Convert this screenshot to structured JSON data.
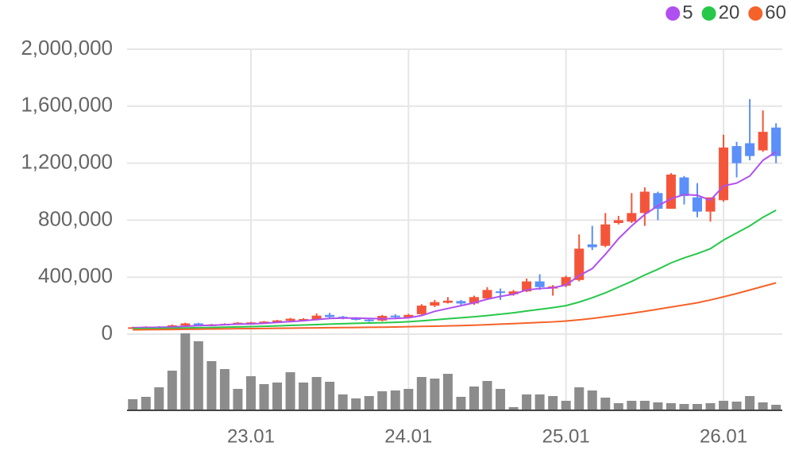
{
  "chart_data": {
    "type": "candlestick",
    "categories": [
      null,
      null,
      null,
      null,
      null,
      null,
      null,
      null,
      null,
      "23.01",
      null,
      null,
      null,
      null,
      null,
      null,
      null,
      null,
      null,
      null,
      null,
      "24.01",
      null,
      null,
      null,
      null,
      null,
      null,
      null,
      null,
      null,
      null,
      null,
      "25.01",
      null,
      null,
      null,
      null,
      null,
      null,
      null,
      null,
      null,
      null,
      null,
      "26.01",
      null,
      null,
      null,
      null
    ],
    "open": [
      40000,
      48000,
      52000,
      48000,
      60000,
      75000,
      60000,
      66000,
      70000,
      78000,
      80000,
      86000,
      94000,
      100000,
      100000,
      135000,
      122000,
      112000,
      102000,
      95000,
      130000,
      118000,
      140000,
      200000,
      220000,
      232000,
      215000,
      250000,
      300000,
      280000,
      300000,
      370000,
      320000,
      340000,
      380000,
      630000,
      620000,
      780000,
      790000,
      850000,
      990000,
      880000,
      1100000,
      960000,
      860000,
      940000,
      1320000,
      1340000,
      1290000,
      1450000
    ],
    "high": [
      52000,
      55000,
      56000,
      68000,
      80000,
      80000,
      72000,
      76000,
      84000,
      86000,
      92000,
      100000,
      114000,
      112000,
      145000,
      150000,
      128000,
      118000,
      108000,
      135000,
      140000,
      142000,
      210000,
      240000,
      260000,
      240000,
      270000,
      330000,
      320000,
      310000,
      390000,
      420000,
      345000,
      410000,
      700000,
      760000,
      850000,
      830000,
      990000,
      1030000,
      1000000,
      1130000,
      1110000,
      1060000,
      960000,
      1400000,
      1350000,
      1650000,
      1570000,
      1480000
    ],
    "low": [
      38000,
      44000,
      46000,
      46000,
      55000,
      58000,
      56000,
      62000,
      66000,
      74000,
      76000,
      82000,
      90000,
      96000,
      96000,
      112000,
      104000,
      96000,
      86000,
      90000,
      112000,
      110000,
      135000,
      190000,
      215000,
      205000,
      205000,
      240000,
      240000,
      270000,
      295000,
      310000,
      270000,
      330000,
      370000,
      590000,
      610000,
      770000,
      780000,
      760000,
      800000,
      880000,
      910000,
      820000,
      790000,
      930000,
      1100000,
      1220000,
      1280000,
      1200000
    ],
    "close": [
      48000,
      52000,
      50000,
      62000,
      75000,
      62000,
      68000,
      72000,
      80000,
      82000,
      88000,
      96000,
      108000,
      106000,
      130000,
      120000,
      110000,
      100000,
      92000,
      128000,
      120000,
      135000,
      200000,
      225000,
      235000,
      215000,
      260000,
      310000,
      290000,
      300000,
      370000,
      330000,
      335000,
      400000,
      600000,
      610000,
      770000,
      800000,
      850000,
      1000000,
      880000,
      1120000,
      970000,
      860000,
      960000,
      1310000,
      1200000,
      1250000,
      1420000,
      1250000
    ],
    "volume": [
      14,
      17,
      29,
      50,
      97,
      87,
      62,
      52,
      27,
      43,
      33,
      35,
      48,
      35,
      42,
      36,
      20,
      15,
      18,
      24,
      25,
      27,
      42,
      40,
      46,
      17,
      30,
      37,
      27,
      4,
      20,
      20,
      18,
      12,
      29,
      25,
      16,
      9,
      12,
      12,
      10,
      9,
      8,
      8,
      9,
      12,
      11,
      18,
      10,
      7
    ],
    "up_color": "#f4553a",
    "down_color": "#5b8ff9",
    "volume_color": "#8c8c8c",
    "series": [
      {
        "name": "5",
        "color": "#b04ff0",
        "values": [
          45000,
          47000,
          48000,
          50000,
          55000,
          60000,
          62000,
          66000,
          70000,
          72000,
          76000,
          82000,
          88000,
          94000,
          102000,
          110000,
          113000,
          113000,
          110000,
          108000,
          110000,
          115000,
          130000,
          160000,
          180000,
          200000,
          220000,
          245000,
          265000,
          280000,
          310000,
          320000,
          325000,
          345000,
          410000,
          460000,
          560000,
          670000,
          760000,
          840000,
          900000,
          950000,
          980000,
          975000,
          940000,
          1040000,
          1060000,
          1110000,
          1220000,
          1280000
        ]
      },
      {
        "name": "20",
        "color": "#27c84a",
        "values": [
          38000,
          39000,
          40000,
          41000,
          43000,
          45000,
          47000,
          49000,
          51000,
          53000,
          55000,
          58000,
          61000,
          64000,
          67000,
          70000,
          73000,
          76000,
          78000,
          80000,
          83000,
          87000,
          93000,
          100000,
          108000,
          115000,
          122000,
          130000,
          140000,
          150000,
          162000,
          174000,
          186000,
          200000,
          225000,
          255000,
          290000,
          330000,
          370000,
          415000,
          455000,
          500000,
          535000,
          565000,
          600000,
          660000,
          710000,
          760000,
          820000,
          870000
        ]
      },
      {
        "name": "60",
        "color": "#f5622a",
        "values": [
          30000,
          31000,
          32000,
          33000,
          34000,
          35000,
          36000,
          37000,
          38000,
          39000,
          40000,
          41000,
          42000,
          43000,
          44000,
          45000,
          46000,
          47000,
          48000,
          49000,
          50000,
          52000,
          54000,
          56000,
          58000,
          60000,
          63000,
          66000,
          70000,
          74000,
          78000,
          82000,
          86000,
          92000,
          100000,
          110000,
          122000,
          134000,
          146000,
          160000,
          175000,
          190000,
          205000,
          220000,
          240000,
          262000,
          285000,
          310000,
          335000,
          360000
        ]
      }
    ],
    "ylim": [
      0,
      2000000
    ],
    "yticks": [
      0,
      {
        "value": 400000,
        "label": "400,000"
      },
      {
        "value": 800000,
        "label": "800,000"
      },
      {
        "value": 1200000,
        "label": "1,200,000"
      },
      {
        "value": 1600000,
        "label": "1,600,000"
      },
      {
        "value": 2000000,
        "label": "2,000,000"
      }
    ],
    "grid": true,
    "legend": "top-right"
  }
}
